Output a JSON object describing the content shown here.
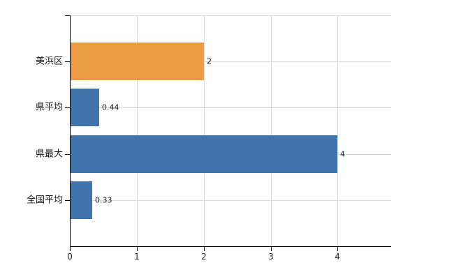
{
  "chart_data": {
    "type": "bar",
    "orientation": "horizontal",
    "title": "",
    "xlabel": "",
    "ylabel": "",
    "categories": [
      "美浜区",
      "県平均",
      "県最大",
      "全国平均"
    ],
    "values": [
      2,
      0.44,
      4,
      0.33
    ],
    "value_labels": [
      "2",
      "0.44",
      "4",
      "0.33"
    ],
    "bar_colors": [
      "#ec9c40",
      "#4173ac",
      "#4173ac",
      "#4173ac"
    ],
    "x_ticks": [
      "0",
      "1",
      "2",
      "3",
      "4"
    ],
    "x_tick_values": [
      0,
      1,
      2,
      3,
      4
    ],
    "xlim": [
      0,
      4.8
    ],
    "grid": true,
    "legend": "none"
  },
  "colors": {
    "bar_orange": "#ec9c40",
    "bar_blue": "#4173ac",
    "gridline": "#d9d9d9",
    "axis": "#000000",
    "label_text": "#1a1a1a",
    "tick_text": "#262626",
    "background": "#ffffff"
  }
}
